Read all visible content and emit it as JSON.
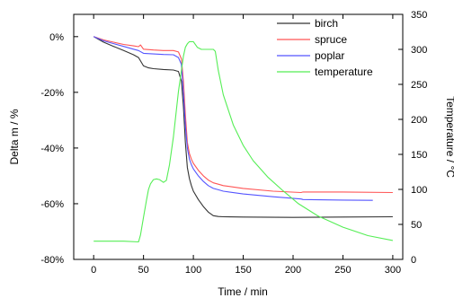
{
  "chart_data": {
    "type": "line",
    "title": "",
    "xlabel": "Time / min",
    "ylabel_left": "Delta m / %",
    "ylabel_right": "Temperature / °C",
    "xlim": [
      -20,
      310
    ],
    "ylim_left": [
      -80,
      8
    ],
    "ylim_right": [
      0,
      350
    ],
    "x_ticks": [
      0,
      50,
      100,
      150,
      200,
      250,
      300
    ],
    "x_tick_labels": [
      "0",
      "50",
      "100",
      "150",
      "200",
      "250",
      "300"
    ],
    "y_left_ticks": [
      0,
      -20,
      -40,
      -60,
      -80
    ],
    "y_left_tick_labels": [
      "0%",
      "-20%",
      "-40%",
      "-60%",
      "-80%"
    ],
    "y_right_ticks": [
      0,
      50,
      100,
      150,
      200,
      250,
      300,
      350
    ],
    "y_right_tick_labels": [
      "0",
      "50",
      "100",
      "150",
      "200",
      "250",
      "300",
      "350"
    ],
    "grid": false,
    "legend_position": "top-right",
    "series": [
      {
        "name": "birch",
        "axis": "left",
        "color": "#333333",
        "x": [
          0,
          10,
          20,
          30,
          40,
          45,
          50,
          55,
          60,
          70,
          80,
          85,
          88,
          90,
          92,
          94,
          96,
          98,
          100,
          105,
          110,
          115,
          120,
          125,
          130,
          150,
          200,
          250,
          300
        ],
        "y": [
          0,
          -2,
          -3.5,
          -5,
          -6.5,
          -7.5,
          -10.5,
          -11.2,
          -11.5,
          -11.8,
          -12,
          -12.5,
          -16,
          -25,
          -38,
          -47,
          -51,
          -53.5,
          -55.5,
          -58.5,
          -61,
          -63,
          -64.3,
          -64.6,
          -64.7,
          -64.8,
          -64.9,
          -64.8,
          -64.7
        ]
      },
      {
        "name": "spruce",
        "axis": "left",
        "color": "#ff5555",
        "x": [
          0,
          10,
          20,
          30,
          40,
          45,
          47,
          50,
          60,
          70,
          80,
          85,
          88,
          90,
          92,
          94,
          96,
          98,
          100,
          105,
          110,
          115,
          120,
          125,
          130,
          150,
          180,
          208,
          210,
          250,
          300
        ],
        "y": [
          0,
          -1.2,
          -2,
          -2.8,
          -3.3,
          -3.6,
          -3,
          -4.5,
          -4.8,
          -5,
          -5,
          -5.5,
          -8,
          -16,
          -28,
          -38,
          -42,
          -44,
          -45.5,
          -48,
          -50,
          -51.5,
          -52.5,
          -53,
          -53.5,
          -54.5,
          -55.5,
          -56,
          -55.8,
          -55.8,
          -56
        ]
      },
      {
        "name": "poplar",
        "axis": "left",
        "color": "#5555ff",
        "x": [
          0,
          10,
          20,
          30,
          40,
          45,
          50,
          60,
          70,
          80,
          85,
          88,
          90,
          92,
          94,
          96,
          98,
          100,
          105,
          110,
          115,
          120,
          125,
          130,
          150,
          180,
          208,
          210,
          250,
          280
        ],
        "y": [
          0,
          -1.5,
          -2.5,
          -3.5,
          -4.5,
          -5,
          -6,
          -6.2,
          -6.4,
          -6.5,
          -7.5,
          -10,
          -20,
          -32,
          -40,
          -44,
          -46,
          -47.5,
          -50,
          -52,
          -53.5,
          -54.5,
          -55,
          -55.5,
          -56.5,
          -57.5,
          -58.3,
          -58.5,
          -58.7,
          -58.8
        ]
      },
      {
        "name": "temperature",
        "axis": "right",
        "color": "#55ee55",
        "x": [
          0,
          30,
          45,
          47,
          50,
          53,
          55,
          57,
          60,
          63,
          66,
          70,
          73,
          76,
          80,
          85,
          90,
          92,
          94,
          96,
          100,
          104,
          108,
          115,
          120,
          122,
          125,
          130,
          140,
          150,
          160,
          175,
          190,
          205,
          225,
          250,
          275,
          300
        ],
        "y": [
          26,
          26,
          25,
          35,
          60,
          85,
          100,
          108,
          114,
          115,
          114,
          110,
          113,
          135,
          175,
          240,
          290,
          303,
          308,
          311,
          311,
          303,
          300,
          300,
          300,
          297,
          270,
          235,
          192,
          163,
          141,
          117,
          98,
          80,
          62,
          46,
          34,
          27
        ]
      }
    ]
  }
}
